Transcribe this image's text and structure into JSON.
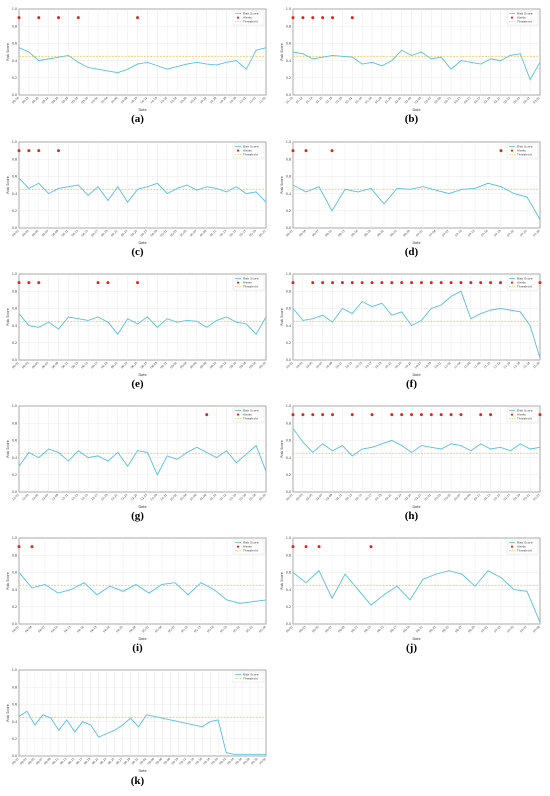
{
  "common": {
    "xlabel": "Date",
    "ylabel": "Risk Score",
    "legend_risk": "Risk Score",
    "legend_alerts": "Alerts",
    "legend_threshold": "Threshold",
    "threshold": 0.45,
    "ylim": [
      0,
      1
    ],
    "legend_position": "top-right",
    "grid": true,
    "colors": {
      "risk": "#5bc0de",
      "alerts": "#e8231f",
      "threshold": "#f0c96a"
    }
  },
  "chart_data": [
    {
      "id": "a",
      "caption": "(a)",
      "type": "line",
      "has_alerts": true,
      "x": [
        "09-16",
        "09-18",
        "09-20",
        "09-22",
        "09-24",
        "09-26",
        "09-28",
        "09-30",
        "10-02",
        "10-04",
        "10-06",
        "10-08",
        "10-10",
        "10-12",
        "10-14",
        "10-16",
        "10-18",
        "10-20",
        "10-22",
        "10-24",
        "10-26",
        "10-28",
        "10-30",
        "11-01",
        "11-03",
        "11-05"
      ],
      "risk": [
        0.55,
        0.5,
        0.4,
        0.42,
        0.44,
        0.46,
        0.38,
        0.32,
        0.3,
        0.28,
        0.26,
        0.3,
        0.36,
        0.38,
        0.34,
        0.3,
        0.33,
        0.36,
        0.38,
        0.36,
        0.35,
        0.38,
        0.4,
        0.3,
        0.52,
        0.55
      ],
      "alerts": [
        0,
        2,
        4,
        6,
        12
      ]
    },
    {
      "id": "b",
      "caption": "(b)",
      "type": "line",
      "has_alerts": true,
      "x": [
        "01-10",
        "01-12",
        "01-14",
        "01-16",
        "01-18",
        "01-20",
        "01-22",
        "01-24",
        "01-26",
        "01-28",
        "01-30",
        "02-01",
        "02-03",
        "02-05",
        "02-07",
        "02-09",
        "02-11",
        "02-13",
        "02-15",
        "02-17",
        "02-19",
        "02-21",
        "02-23",
        "02-25",
        "02-27",
        "03-01"
      ],
      "risk": [
        0.5,
        0.48,
        0.42,
        0.44,
        0.46,
        0.45,
        0.44,
        0.36,
        0.38,
        0.34,
        0.4,
        0.52,
        0.46,
        0.5,
        0.42,
        0.44,
        0.3,
        0.4,
        0.38,
        0.36,
        0.42,
        0.4,
        0.46,
        0.48,
        0.18,
        0.38
      ],
      "alerts": [
        0,
        1,
        2,
        3,
        4,
        6
      ]
    },
    {
      "id": "c",
      "caption": "(c)",
      "type": "line",
      "has_alerts": true,
      "x": [
        "04-01",
        "04-03",
        "04-05",
        "04-07",
        "04-09",
        "04-11",
        "04-13",
        "04-15",
        "04-17",
        "04-19",
        "04-21",
        "04-23",
        "04-25",
        "04-27",
        "04-29",
        "05-01",
        "05-03",
        "05-05",
        "05-07",
        "05-09",
        "05-11",
        "05-13",
        "05-15",
        "05-17",
        "05-19",
        "05-21"
      ],
      "risk": [
        0.58,
        0.46,
        0.52,
        0.4,
        0.46,
        0.48,
        0.5,
        0.38,
        0.48,
        0.32,
        0.48,
        0.3,
        0.45,
        0.48,
        0.52,
        0.4,
        0.46,
        0.5,
        0.44,
        0.48,
        0.46,
        0.42,
        0.48,
        0.4,
        0.42,
        0.3
      ],
      "alerts": [
        0,
        1,
        2,
        4
      ]
    },
    {
      "id": "d",
      "caption": "(d)",
      "type": "line",
      "has_alerts": true,
      "x": [
        "06-01",
        "06-04",
        "06-07",
        "06-10",
        "06-13",
        "06-16",
        "06-19",
        "06-22",
        "06-25",
        "06-28",
        "07-01",
        "07-04",
        "07-07",
        "07-10",
        "07-13",
        "07-16",
        "07-19",
        "07-22",
        "07-25",
        "07-28"
      ],
      "risk": [
        0.5,
        0.42,
        0.48,
        0.2,
        0.45,
        0.42,
        0.46,
        0.28,
        0.46,
        0.45,
        0.48,
        0.44,
        0.4,
        0.45,
        0.46,
        0.52,
        0.48,
        0.4,
        0.36,
        0.1
      ],
      "alerts": [
        0,
        1,
        3,
        16
      ]
    },
    {
      "id": "e",
      "caption": "(e)",
      "type": "line",
      "has_alerts": true,
      "x": [
        "08-01",
        "08-03",
        "08-05",
        "08-07",
        "08-09",
        "08-11",
        "08-13",
        "08-15",
        "08-17",
        "08-19",
        "08-21",
        "08-23",
        "08-25",
        "08-27",
        "08-29",
        "08-31",
        "09-02",
        "09-04",
        "09-06",
        "09-08",
        "09-10",
        "09-12",
        "09-14",
        "09-16",
        "09-18",
        "09-20"
      ],
      "risk": [
        0.54,
        0.4,
        0.38,
        0.44,
        0.36,
        0.5,
        0.48,
        0.46,
        0.5,
        0.44,
        0.3,
        0.48,
        0.42,
        0.5,
        0.38,
        0.48,
        0.44,
        0.46,
        0.45,
        0.38,
        0.46,
        0.5,
        0.44,
        0.42,
        0.3,
        0.5
      ],
      "alerts": [
        0,
        1,
        2,
        8,
        9,
        12
      ]
    },
    {
      "id": "f",
      "caption": "(f)",
      "type": "line",
      "has_alerts": true,
      "x": [
        "10-01",
        "10-03",
        "10-05",
        "10-07",
        "10-09",
        "10-11",
        "10-13",
        "10-15",
        "10-17",
        "10-19",
        "10-21",
        "10-23",
        "10-25",
        "10-27",
        "10-29",
        "10-31",
        "11-02",
        "11-04",
        "11-06",
        "11-08",
        "11-10",
        "11-12",
        "11-14",
        "11-16",
        "11-18",
        "11-20"
      ],
      "risk": [
        0.6,
        0.46,
        0.48,
        0.52,
        0.44,
        0.6,
        0.54,
        0.68,
        0.62,
        0.66,
        0.52,
        0.56,
        0.4,
        0.46,
        0.6,
        0.64,
        0.74,
        0.8,
        0.48,
        0.54,
        0.58,
        0.6,
        0.58,
        0.56,
        0.4,
        0.02
      ],
      "alerts": [
        0,
        2,
        3,
        4,
        5,
        6,
        7,
        8,
        9,
        10,
        11,
        12,
        13,
        14,
        15,
        16,
        17,
        18,
        19,
        20,
        21,
        22,
        23,
        24,
        25
      ]
    },
    {
      "id": "g",
      "caption": "(g)",
      "type": "line",
      "has_alerts": true,
      "x": [
        "12-01",
        "12-03",
        "12-05",
        "12-07",
        "12-09",
        "12-11",
        "12-13",
        "12-15",
        "12-17",
        "12-19",
        "12-21",
        "12-23",
        "12-25",
        "12-27",
        "12-29",
        "12-31",
        "01-02",
        "01-04",
        "01-06",
        "01-08",
        "01-10",
        "01-12",
        "01-14",
        "01-16",
        "01-18",
        "01-20"
      ],
      "risk": [
        0.3,
        0.46,
        0.4,
        0.5,
        0.46,
        0.36,
        0.48,
        0.4,
        0.42,
        0.36,
        0.46,
        0.3,
        0.48,
        0.46,
        0.2,
        0.42,
        0.38,
        0.46,
        0.52,
        0.46,
        0.4,
        0.48,
        0.34,
        0.44,
        0.54,
        0.24
      ],
      "alerts": [
        19
      ]
    },
    {
      "id": "h",
      "caption": "(h)",
      "type": "line",
      "has_alerts": true,
      "x": [
        "02-01",
        "02-03",
        "02-05",
        "02-07",
        "02-09",
        "02-11",
        "02-13",
        "02-15",
        "02-17",
        "02-19",
        "02-21",
        "02-23",
        "02-25",
        "02-27",
        "03-01",
        "03-03",
        "03-05",
        "03-07",
        "03-09",
        "03-11",
        "03-13",
        "03-15",
        "03-17",
        "03-19",
        "03-21",
        "03-23"
      ],
      "risk": [
        0.74,
        0.58,
        0.46,
        0.56,
        0.48,
        0.54,
        0.42,
        0.5,
        0.52,
        0.56,
        0.6,
        0.54,
        0.46,
        0.54,
        0.52,
        0.5,
        0.56,
        0.54,
        0.48,
        0.56,
        0.5,
        0.52,
        0.48,
        0.56,
        0.5,
        0.52
      ],
      "alerts": [
        0,
        1,
        2,
        3,
        4,
        6,
        8,
        10,
        11,
        12,
        13,
        14,
        15,
        16,
        17,
        19,
        20,
        22,
        23,
        24,
        25
      ]
    },
    {
      "id": "i",
      "caption": "(i)",
      "type": "line",
      "has_alerts": true,
      "x": [
        "04-01",
        "04-04",
        "04-07",
        "04-10",
        "04-13",
        "04-16",
        "04-19",
        "04-22",
        "04-25",
        "04-28",
        "05-01",
        "05-04",
        "05-07",
        "05-10",
        "05-13",
        "05-16",
        "05-19",
        "05-22",
        "05-25",
        "05-28"
      ],
      "risk": [
        0.6,
        0.42,
        0.46,
        0.36,
        0.4,
        0.48,
        0.34,
        0.44,
        0.38,
        0.46,
        0.36,
        0.46,
        0.48,
        0.34,
        0.48,
        0.4,
        0.28,
        0.24,
        0.26,
        0.28
      ],
      "alerts": [
        0,
        1
      ]
    },
    {
      "id": "j",
      "caption": "(j)",
      "type": "line",
      "has_alerts": true,
      "x": [
        "06-01",
        "06-03",
        "06-05",
        "06-07",
        "06-09",
        "06-11",
        "06-13",
        "06-15",
        "06-17",
        "06-19",
        "06-21",
        "06-23",
        "06-25",
        "06-27",
        "06-29",
        "07-01",
        "07-03",
        "07-05",
        "07-07",
        "07-09"
      ],
      "risk": [
        0.6,
        0.48,
        0.62,
        0.3,
        0.58,
        0.4,
        0.22,
        0.34,
        0.44,
        0.28,
        0.52,
        0.58,
        0.62,
        0.58,
        0.44,
        0.62,
        0.54,
        0.4,
        0.38,
        0.02
      ],
      "alerts": [
        0,
        1,
        2,
        6
      ]
    },
    {
      "id": "k",
      "caption": "(k)",
      "type": "line",
      "has_alerts": false,
      "x": [
        "08-01",
        "08-03",
        "08-05",
        "08-07",
        "08-09",
        "08-11",
        "08-13",
        "08-15",
        "08-17",
        "08-19",
        "08-21",
        "08-23",
        "08-25",
        "08-27",
        "08-29",
        "08-31",
        "09-02",
        "09-04",
        "09-06",
        "09-08",
        "09-10",
        "09-12",
        "09-14",
        "09-16",
        "09-18",
        "09-20",
        "09-22",
        "09-24",
        "09-26",
        "09-28",
        "09-30",
        "10-02"
      ],
      "risk": [
        0.46,
        0.52,
        0.36,
        0.48,
        0.44,
        0.3,
        0.42,
        0.28,
        0.4,
        0.36,
        0.22,
        0.26,
        0.3,
        0.36,
        0.44,
        0.34,
        0.48,
        0.46,
        0.44,
        0.42,
        0.4,
        0.38,
        0.36,
        0.34,
        0.4,
        0.42,
        0.04,
        0.02,
        0.02,
        0.02,
        0.02,
        0.02
      ],
      "alerts": []
    }
  ]
}
